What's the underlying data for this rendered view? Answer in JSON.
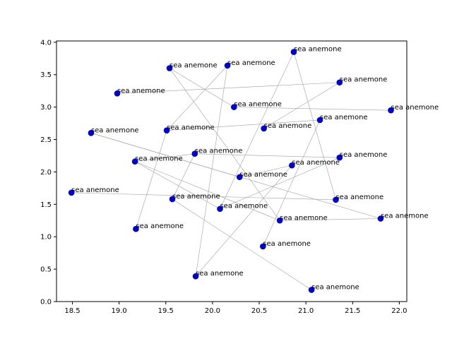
{
  "chart_data": {
    "type": "scatter",
    "title": "",
    "xlabel": "",
    "ylabel": "",
    "xlim": [
      18.33,
      22.08
    ],
    "ylim": [
      0.0,
      4.02
    ],
    "xticks": [
      18.5,
      19.0,
      19.5,
      20.0,
      20.5,
      21.0,
      21.5,
      22.0
    ],
    "xtick_labels": [
      "18.5",
      "19.0",
      "19.5",
      "20.0",
      "20.5",
      "21.0",
      "21.5",
      "22.0"
    ],
    "yticks": [
      0.0,
      0.5,
      1.0,
      1.5,
      2.0,
      2.5,
      3.0,
      3.5,
      4.0
    ],
    "ytick_labels": [
      "0.0",
      "0.5",
      "1.0",
      "1.5",
      "2.0",
      "2.5",
      "3.0",
      "3.5",
      "4.0"
    ],
    "grid": false,
    "legend": "none",
    "marker_color": "#0000cc",
    "edge_color": "#a0a0a0",
    "points": [
      {
        "x": 18.49,
        "y": 1.68,
        "label": "sea anemone"
      },
      {
        "x": 18.7,
        "y": 2.6,
        "label": "sea anemone"
      },
      {
        "x": 18.98,
        "y": 3.21,
        "label": "sea anemone"
      },
      {
        "x": 19.17,
        "y": 2.16,
        "label": "sea anemone"
      },
      {
        "x": 19.18,
        "y": 1.12,
        "label": "sea anemone"
      },
      {
        "x": 19.51,
        "y": 2.64,
        "label": "sea anemone"
      },
      {
        "x": 19.54,
        "y": 3.6,
        "label": "sea anemone"
      },
      {
        "x": 19.57,
        "y": 1.58,
        "label": "sea anemone"
      },
      {
        "x": 19.81,
        "y": 2.28,
        "label": "sea anemone"
      },
      {
        "x": 19.82,
        "y": 0.39,
        "label": "sea anemone"
      },
      {
        "x": 20.08,
        "y": 1.43,
        "label": "sea anemone"
      },
      {
        "x": 20.16,
        "y": 3.64,
        "label": "sea anemone"
      },
      {
        "x": 20.23,
        "y": 3.0,
        "label": "sea anemone"
      },
      {
        "x": 20.29,
        "y": 1.92,
        "label": "sea anemone"
      },
      {
        "x": 20.54,
        "y": 0.85,
        "label": "sea anemone"
      },
      {
        "x": 20.55,
        "y": 2.67,
        "label": "sea anemone"
      },
      {
        "x": 20.72,
        "y": 1.25,
        "label": "sea anemone"
      },
      {
        "x": 20.85,
        "y": 2.1,
        "label": "sea anemone"
      },
      {
        "x": 20.87,
        "y": 3.85,
        "label": "sea anemone"
      },
      {
        "x": 21.06,
        "y": 0.18,
        "label": "sea anemone"
      },
      {
        "x": 21.15,
        "y": 2.8,
        "label": "sea anemone"
      },
      {
        "x": 21.32,
        "y": 1.57,
        "label": "sea anemone"
      },
      {
        "x": 21.36,
        "y": 3.38,
        "label": "sea anemone"
      },
      {
        "x": 21.36,
        "y": 2.22,
        "label": "sea anemone"
      },
      {
        "x": 21.8,
        "y": 1.28,
        "label": "sea anemone"
      },
      {
        "x": 21.91,
        "y": 2.95,
        "label": "sea anemone"
      }
    ],
    "edges": [
      [
        0,
        21
      ],
      [
        1,
        13
      ],
      [
        1,
        24
      ],
      [
        2,
        22
      ],
      [
        3,
        8
      ],
      [
        3,
        10
      ],
      [
        4,
        5
      ],
      [
        5,
        11
      ],
      [
        5,
        20
      ],
      [
        6,
        16
      ],
      [
        6,
        12
      ],
      [
        7,
        19
      ],
      [
        7,
        8
      ],
      [
        8,
        23
      ],
      [
        9,
        17
      ],
      [
        9,
        11
      ],
      [
        10,
        18
      ],
      [
        10,
        23
      ],
      [
        12,
        25
      ],
      [
        14,
        20
      ],
      [
        15,
        22
      ],
      [
        16,
        24
      ],
      [
        18,
        21
      ],
      [
        3,
        16
      ],
      [
        13,
        17
      ]
    ]
  }
}
